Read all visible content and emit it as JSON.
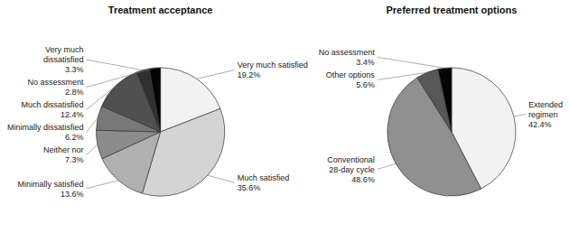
{
  "chart_data": [
    {
      "type": "pie",
      "title": "Treatment acceptance",
      "categories": [
        "Very much satisfied",
        "Much satisfied",
        "Minimally satisfied",
        "Neither nor",
        "Minimally dissatisfied",
        "Much dissatisfied",
        "Very much\ndissatisfied",
        "No assessment"
      ],
      "values": [
        19.2,
        35.6,
        13.6,
        7.3,
        6.2,
        12.4,
        3.3,
        2.8
      ],
      "value_labels": [
        "19.2%",
        "35.6%",
        "13.6%",
        "7.3%",
        "6.2%",
        "12.4%",
        "3.3%",
        "2.8%"
      ],
      "colors": [
        "#f2f2f2",
        "#d4d4d4",
        "#b0b0b0",
        "#8c8c8c",
        "#787878",
        "#505050",
        "#303030",
        "#050505"
      ],
      "data_labels": true
    },
    {
      "type": "pie",
      "title": "Preferred treatment options",
      "categories": [
        "Extended\nregimen",
        "Conventional\n28-day cycle",
        "Other options",
        "No assessment"
      ],
      "values": [
        42.4,
        48.6,
        5.6,
        3.4
      ],
      "value_labels": [
        "42.4%",
        "48.6%",
        "5.6%",
        "3.4%"
      ],
      "colors": [
        "#f2f2f2",
        "#909090",
        "#585858",
        "#050505"
      ],
      "data_labels": true
    }
  ]
}
